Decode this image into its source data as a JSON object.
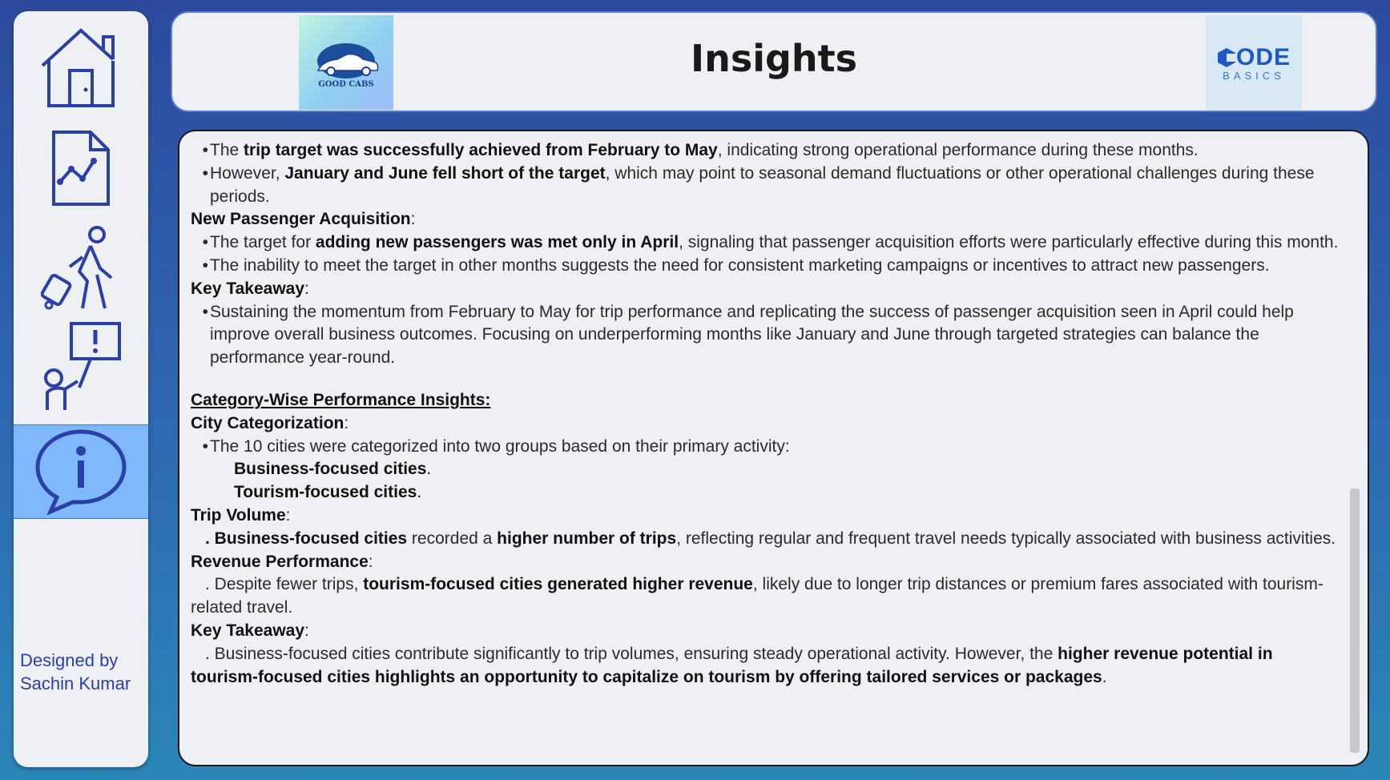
{
  "header": {
    "title": "Insights"
  },
  "logos": {
    "left_text": "GOOD CABS",
    "right_text_main": "ODE",
    "right_text_sub": "BASICS"
  },
  "sidebar": {
    "designer_line1": "Designed by",
    "designer_line2": "Sachin Kumar"
  },
  "content": {
    "b1_pre": "The ",
    "b1_bold": "trip target was successfully achieved from February to May",
    "b1_post": ", indicating strong operational performance during these months.",
    "b2_pre": "However, ",
    "b2_bold": "January and June fell short of the target",
    "b2_post": ", which may point to seasonal demand fluctuations or other operational challenges during these periods.",
    "h_new_passenger": "New Passenger Acquisition",
    "b3_pre": "The target for ",
    "b3_bold": "adding new passengers was met only in April",
    "b3_post": ", signaling that passenger acquisition efforts were particularly effective during this month.",
    "b4": "The inability to meet the target in other months suggests the need for consistent marketing campaigns or incentives to attract new passengers.",
    "h_key1": "Key Takeaway",
    "b5": "Sustaining the momentum from February to May for trip performance and replicating the success of passenger acquisition seen in April could help improve overall business outcomes. Focusing on underperforming months like January and June through targeted strategies can balance the performance year-round.",
    "h_category": "Category-Wise Performance Insights:",
    "h_city": "City Categorization",
    "b6": "The 10 cities were categorized into two groups based on their primary activity:",
    "city_group1": "Business-focused cities",
    "city_group2": "Tourism-focused cities",
    "h_trip": "Trip Volume",
    "b7_bold1": "Business-focused cities",
    "b7_mid": " recorded a ",
    "b7_bold2": "higher number of trips",
    "b7_post": ", reflecting regular and frequent travel needs typically associated with business activities.",
    "h_revenue": "Revenue Performance",
    "b8_pre": ". Despite fewer trips, ",
    "b8_bold": "tourism-focused cities generated higher revenue",
    "b8_post": ", likely due to longer trip distances or premium fares associated with tourism-related travel.",
    "h_key2": "Key Takeaway",
    "b9_pre": ". Business-focused cities contribute significantly to trip volumes, ensuring steady operational activity. However, the ",
    "b9_bold": "higher revenue potential in tourism-focused cities highlights an opportunity to capitalize on tourism by offering tailored services or packages"
  },
  "colors": {
    "accent": "#7fb9fb",
    "icon": "#2b3fa8",
    "background": "#2f63b0"
  }
}
